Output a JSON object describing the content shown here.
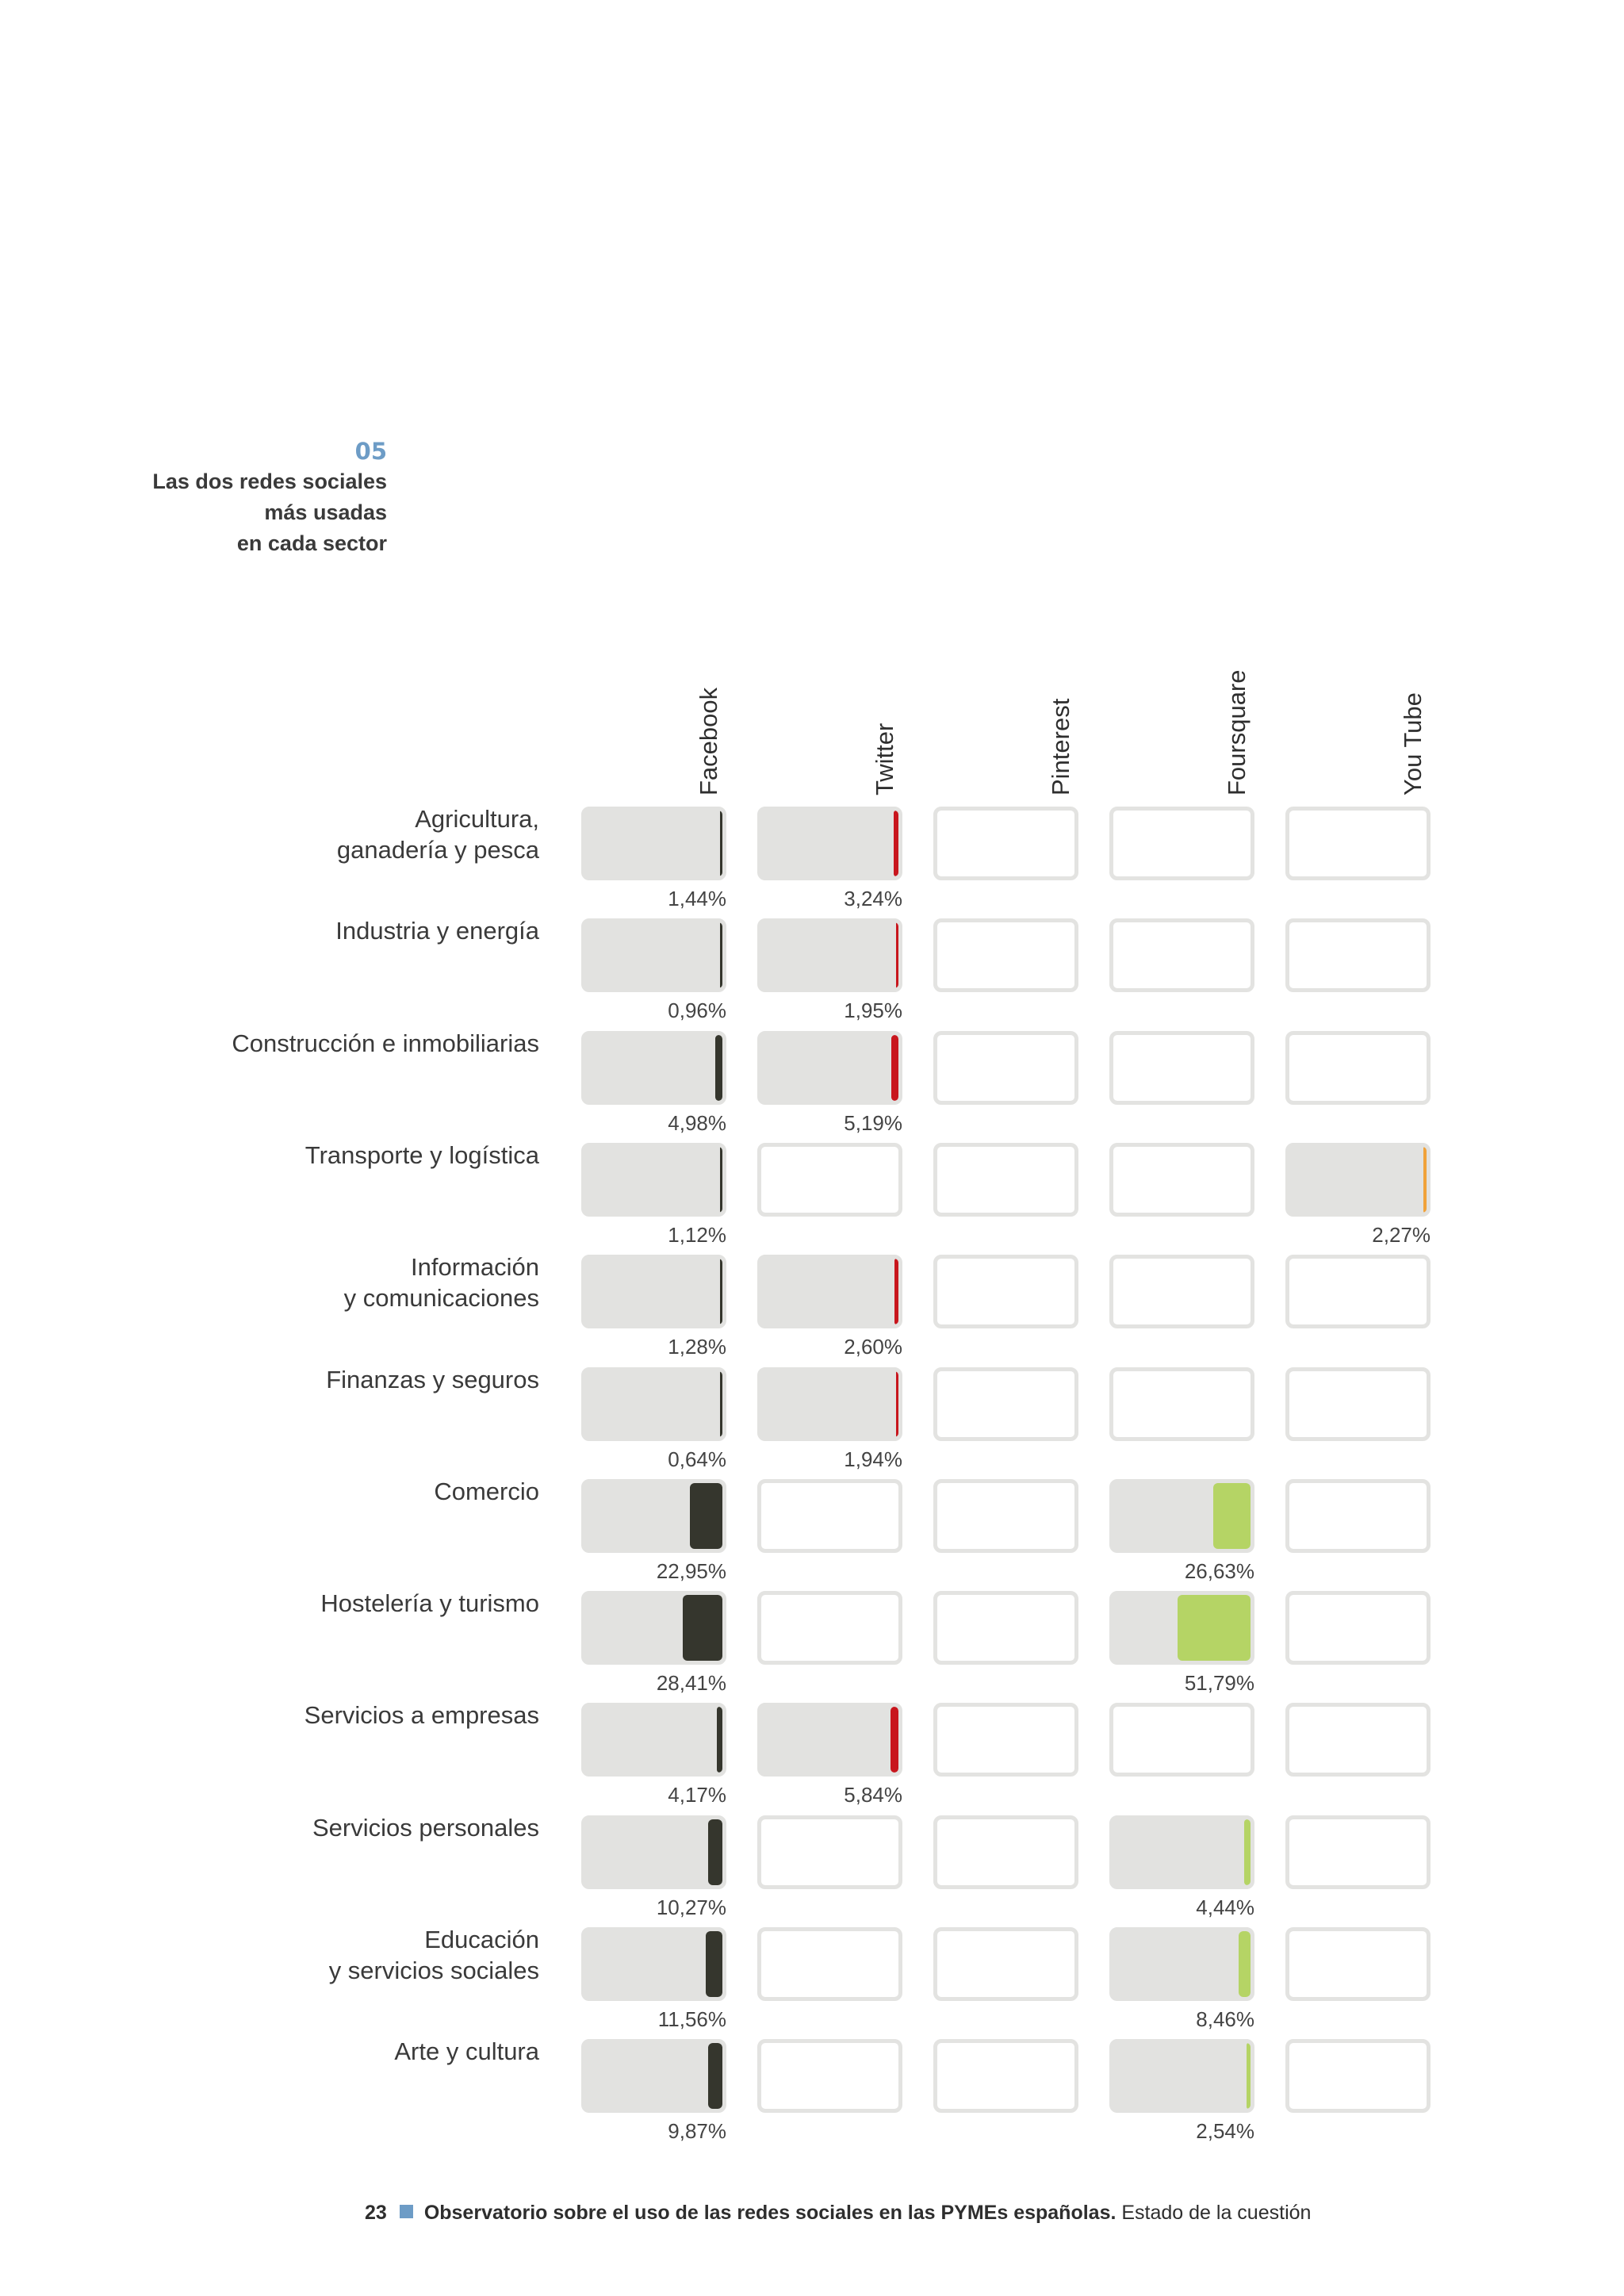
{
  "figure": {
    "number": "05",
    "title_lines": [
      "Las dos redes sociales",
      "más usadas",
      "en cada sector"
    ]
  },
  "chart_data": {
    "type": "table",
    "columns": [
      "Facebook",
      "Twitter",
      "Pinterest",
      "Foursquare",
      "You Tube"
    ],
    "colors": {
      "Facebook": "#35362d",
      "Twitter": "#c8161d",
      "Pinterest": "#7a7a7a",
      "Foursquare": "#b5d465",
      "You Tube": "#f0a23a"
    },
    "rows": [
      {
        "label_lines": [
          "Agricultura,",
          "ganadería y pesca"
        ],
        "values": {
          "Facebook": "1,44%",
          "Twitter": "3,24%"
        }
      },
      {
        "label_lines": [
          "Industria y energía"
        ],
        "values": {
          "Facebook": "0,96%",
          "Twitter": "1,95%"
        }
      },
      {
        "label_lines": [
          "Construcción e inmobiliarias"
        ],
        "values": {
          "Facebook": "4,98%",
          "Twitter": "5,19%"
        }
      },
      {
        "label_lines": [
          "Transporte y logística"
        ],
        "values": {
          "Facebook": "1,12%",
          "You Tube": "2,27%"
        }
      },
      {
        "label_lines": [
          "Información",
          "y comunicaciones"
        ],
        "values": {
          "Facebook": "1,28%",
          "Twitter": "2,60%"
        }
      },
      {
        "label_lines": [
          "Finanzas y seguros"
        ],
        "values": {
          "Facebook": "0,64%",
          "Twitter": "1,94%"
        }
      },
      {
        "label_lines": [
          "Comercio"
        ],
        "values": {
          "Facebook": "22,95%",
          "Foursquare": "26,63%"
        }
      },
      {
        "label_lines": [
          "Hostelería y turismo"
        ],
        "values": {
          "Facebook": "28,41%",
          "Foursquare": "51,79%"
        }
      },
      {
        "label_lines": [
          "Servicios a empresas"
        ],
        "values": {
          "Facebook": "4,17%",
          "Twitter": "5,84%"
        }
      },
      {
        "label_lines": [
          "Servicios personales"
        ],
        "values": {
          "Facebook": "10,27%",
          "Foursquare": "4,44%"
        }
      },
      {
        "label_lines": [
          "Educación",
          "y servicios sociales"
        ],
        "values": {
          "Facebook": "11,56%",
          "Foursquare": "8,46%"
        }
      },
      {
        "label_lines": [
          "Arte y cultura"
        ],
        "values": {
          "Facebook": "9,87%",
          "Foursquare": "2,54%"
        }
      }
    ]
  },
  "footer": {
    "page_number": "23",
    "title_bold": "Observatorio sobre el uso de las redes sociales en las PYMEs españolas.",
    "title_rest": "Estado de la cuestión"
  }
}
